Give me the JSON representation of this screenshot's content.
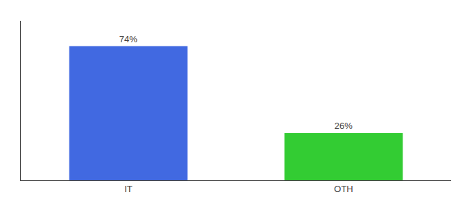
{
  "chart_data": {
    "type": "bar",
    "categories": [
      "IT",
      "OTH"
    ],
    "values": [
      74,
      26
    ],
    "value_labels": [
      "74%",
      "26%"
    ],
    "colors": [
      "#4169e1",
      "#33cc33"
    ],
    "ylim": [
      0,
      88
    ],
    "grid": false,
    "data_labels": true,
    "tick_labels": "x"
  }
}
